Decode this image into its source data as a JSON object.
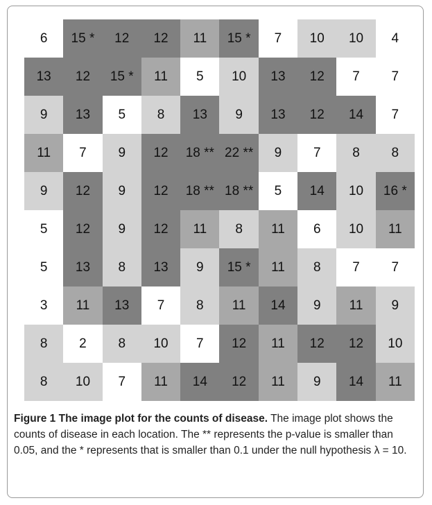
{
  "figure": {
    "cells": [
      [
        "6",
        "15 *",
        "12",
        "12",
        "11",
        "15 *",
        "7",
        "10",
        "10",
        "4"
      ],
      [
        "13",
        "12",
        "15 *",
        "11",
        "5",
        "10",
        "13",
        "12",
        "7",
        "7"
      ],
      [
        "9",
        "13",
        "5",
        "8",
        "13",
        "9",
        "13",
        "12",
        "14",
        "7"
      ],
      [
        "11",
        "7",
        "9",
        "12",
        "18 **",
        "22 **",
        "9",
        "7",
        "8",
        "8"
      ],
      [
        "9",
        "12",
        "9",
        "12",
        "18 **",
        "18 **",
        "5",
        "14",
        "10",
        "16 *"
      ],
      [
        "5",
        "12",
        "9",
        "12",
        "11",
        "8",
        "11",
        "6",
        "10",
        "11"
      ],
      [
        "5",
        "13",
        "8",
        "13",
        "9",
        "15 *",
        "11",
        "8",
        "7",
        "7"
      ],
      [
        "3",
        "11",
        "13",
        "7",
        "8",
        "11",
        "14",
        "9",
        "11",
        "9"
      ],
      [
        "8",
        "2",
        "8",
        "10",
        "7",
        "12",
        "11",
        "12",
        "12",
        "10"
      ],
      [
        "8",
        "10",
        "7",
        "11",
        "14",
        "12",
        "11",
        "9",
        "14",
        "11"
      ]
    ],
    "shades": [
      [
        "#ffffff",
        "#808080",
        "#808080",
        "#808080",
        "#a8a8a8",
        "#808080",
        "#ffffff",
        "#d3d3d3",
        "#d3d3d3",
        "#ffffff"
      ],
      [
        "#808080",
        "#808080",
        "#808080",
        "#a8a8a8",
        "#ffffff",
        "#d3d3d3",
        "#808080",
        "#808080",
        "#ffffff",
        "#ffffff"
      ],
      [
        "#d3d3d3",
        "#808080",
        "#ffffff",
        "#d3d3d3",
        "#808080",
        "#d3d3d3",
        "#808080",
        "#808080",
        "#808080",
        "#ffffff"
      ],
      [
        "#a8a8a8",
        "#ffffff",
        "#d3d3d3",
        "#808080",
        "#808080",
        "#808080",
        "#d3d3d3",
        "#ffffff",
        "#d3d3d3",
        "#d3d3d3"
      ],
      [
        "#d3d3d3",
        "#808080",
        "#d3d3d3",
        "#808080",
        "#808080",
        "#808080",
        "#ffffff",
        "#808080",
        "#d3d3d3",
        "#808080"
      ],
      [
        "#ffffff",
        "#808080",
        "#d3d3d3",
        "#808080",
        "#a8a8a8",
        "#d3d3d3",
        "#a8a8a8",
        "#ffffff",
        "#d3d3d3",
        "#a8a8a8"
      ],
      [
        "#ffffff",
        "#808080",
        "#d3d3d3",
        "#808080",
        "#d3d3d3",
        "#808080",
        "#a8a8a8",
        "#d3d3d3",
        "#ffffff",
        "#ffffff"
      ],
      [
        "#ffffff",
        "#a8a8a8",
        "#808080",
        "#ffffff",
        "#d3d3d3",
        "#a8a8a8",
        "#808080",
        "#d3d3d3",
        "#a8a8a8",
        "#d3d3d3"
      ],
      [
        "#d3d3d3",
        "#ffffff",
        "#d3d3d3",
        "#d3d3d3",
        "#ffffff",
        "#808080",
        "#a8a8a8",
        "#808080",
        "#808080",
        "#d3d3d3"
      ],
      [
        "#d3d3d3",
        "#d3d3d3",
        "#ffffff",
        "#a8a8a8",
        "#808080",
        "#808080",
        "#a8a8a8",
        "#d3d3d3",
        "#808080",
        "#a8a8a8"
      ]
    ],
    "caption_title": "Figure 1 The image plot for the counts of disease.",
    "caption_text": "The image plot shows the counts of disease in each location. The ** represents the p-value is smaller than 0.05, and the * represents that is smaller than 0.1 under the null hypothesis λ = 10."
  }
}
